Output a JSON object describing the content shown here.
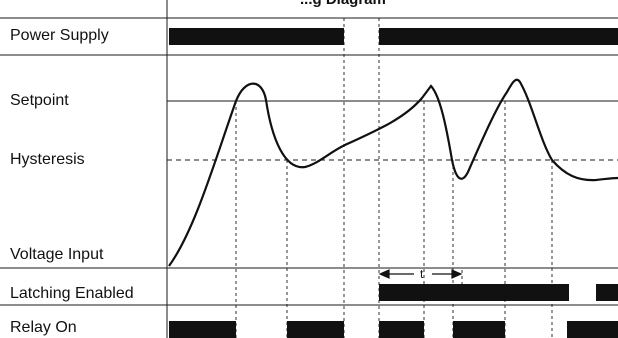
{
  "title": "...g Diagram",
  "rows": {
    "power_supply": "Power Supply",
    "setpoint": "Setpoint",
    "hysteresis": "Hysteresis",
    "voltage_input": "Voltage Input",
    "latching_enabled": "Latching Enabled",
    "relay_on": "Relay On"
  },
  "interval_marker": "t",
  "colors": {
    "line": "#1a1a1a",
    "bar": "#111111",
    "background": "#ffffff"
  }
}
